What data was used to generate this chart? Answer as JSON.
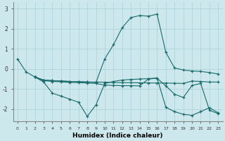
{
  "xlabel": "Humidex (Indice chaleur)",
  "background_color": "#cce8ed",
  "grid_color": "#aed4da",
  "line_color": "#1a6b6b",
  "xlim": [
    -0.5,
    23.5
  ],
  "ylim": [
    -2.6,
    3.3
  ],
  "ytick_values": [
    -2,
    -1,
    0,
    1,
    2,
    3
  ],
  "series": [
    {
      "x": [
        0,
        1,
        2,
        3,
        4,
        5,
        6,
        7,
        8,
        9,
        10,
        11,
        12,
        13,
        14,
        15,
        16,
        17,
        18,
        19,
        20,
        21,
        22,
        23
      ],
      "y": [
        0.5,
        -0.15,
        -0.4,
        -0.55,
        -0.58,
        -0.6,
        -0.62,
        -0.63,
        -0.65,
        -0.67,
        0.5,
        1.2,
        2.05,
        2.55,
        2.65,
        2.62,
        2.72,
        0.82,
        0.05,
        -0.05,
        -0.1,
        -0.12,
        -0.18,
        -0.25
      ]
    },
    {
      "x": [
        2,
        3,
        4,
        5,
        6,
        7,
        8,
        9,
        10,
        11,
        12,
        13,
        14,
        15,
        16,
        17,
        18,
        19,
        20,
        21,
        22,
        23
      ],
      "y": [
        -0.4,
        -0.65,
        -1.2,
        -1.35,
        -1.5,
        -1.65,
        -2.35,
        -1.78,
        -0.72,
        -0.62,
        -0.55,
        -0.52,
        -0.5,
        -0.48,
        -0.45,
        -1.9,
        -2.12,
        -2.25,
        -2.3,
        -2.12,
        -1.92,
        -2.18
      ]
    },
    {
      "x": [
        2,
        3,
        4,
        5,
        6,
        7,
        8,
        9,
        10,
        11,
        12,
        13,
        14,
        15,
        16,
        17,
        18,
        19,
        20,
        21,
        22,
        23
      ],
      "y": [
        -0.4,
        -0.55,
        -0.58,
        -0.6,
        -0.62,
        -0.63,
        -0.65,
        -0.65,
        -0.66,
        -0.67,
        -0.68,
        -0.68,
        -0.69,
        -0.69,
        -0.7,
        -0.7,
        -0.71,
        -0.72,
        -0.6,
        -0.62,
        -0.65,
        -0.65
      ]
    },
    {
      "x": [
        2,
        3,
        4,
        5,
        6,
        7,
        8,
        9,
        10,
        11,
        12,
        13,
        14,
        15,
        16,
        17,
        18,
        19,
        20,
        21,
        22,
        23
      ],
      "y": [
        -0.4,
        -0.58,
        -0.62,
        -0.64,
        -0.67,
        -0.68,
        -0.7,
        -0.72,
        -0.8,
        -0.82,
        -0.83,
        -0.83,
        -0.84,
        -0.5,
        -0.46,
        -0.84,
        -1.25,
        -1.42,
        -0.82,
        -0.72,
        -2.05,
        -2.22
      ]
    }
  ]
}
